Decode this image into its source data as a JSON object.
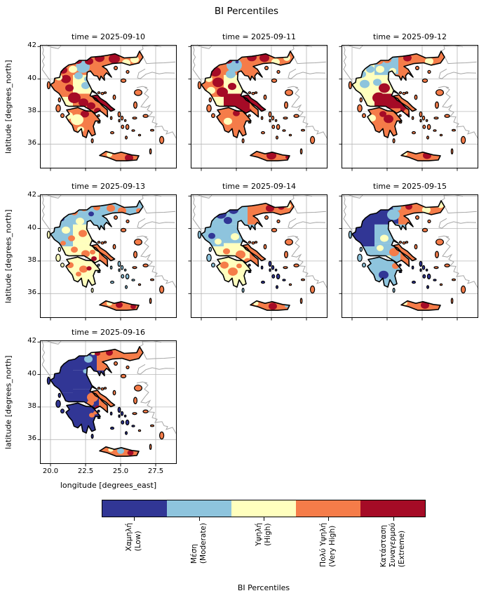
{
  "title": "BI Percentiles",
  "chart_data": {
    "type": "heatmap",
    "suptitle": "BI Percentiles",
    "xlabel": "longitude [degrees_east]",
    "ylabel": "latitude [degrees_north]",
    "x_ticks": [
      "20.0",
      "22.5",
      "25.0",
      "27.5"
    ],
    "x_tick_values": [
      20,
      22.5,
      25,
      27.5
    ],
    "y_ticks": [
      "42",
      "40",
      "38",
      "36"
    ],
    "y_tick_values": [
      42,
      40,
      38,
      36
    ],
    "xlim": [
      19.25,
      29.0
    ],
    "ylim": [
      34.5,
      42.1
    ],
    "grid": true,
    "colorbar": {
      "label": "BI Percentiles",
      "categories": [
        {
          "lines": [
            "Χαμηλή",
            "(Low)"
          ],
          "color": "#313695"
        },
        {
          "lines": [
            "Μέση",
            "(Moderate)"
          ],
          "color": "#8ec4dd"
        },
        {
          "lines": [
            "Υψηλή",
            "(High)"
          ],
          "color": "#ffffbe"
        },
        {
          "lines": [
            "Πολύ Υψηλή",
            "(Very High)"
          ],
          "color": "#f57c49"
        },
        {
          "lines": [
            "Κατάσταση",
            "Συναγερμού",
            "(Extreme)"
          ],
          "color": "#a50b26"
        }
      ]
    },
    "panels": [
      {
        "title": "time = 2025-09-10",
        "date": "2025-09-10",
        "zones": {
          "pelop": 4,
          "nw": 4,
          "wsterea": 3,
          "esterea": 4,
          "thessaly": 3,
          "attica": 4,
          "cmac": 4,
          "chalk": 4,
          "thrace": 4,
          "euboea": 5,
          "crete": 4
        },
        "islands": {
          "ionian": 4,
          "naegean": 4,
          "cyclades": 4,
          "dodecanese": 4
        },
        "patches": [
          [
            20.9,
            40.55,
            0.3,
            5
          ],
          [
            21.1,
            40.0,
            0.35,
            5
          ],
          [
            21.35,
            39.45,
            0.3,
            5
          ],
          [
            21.7,
            38.85,
            0.45,
            5
          ],
          [
            22.35,
            38.55,
            0.35,
            5
          ],
          [
            22.3,
            40.75,
            0.5,
            2
          ],
          [
            22.0,
            40.2,
            0.3,
            2
          ],
          [
            22.65,
            40.0,
            0.25,
            2
          ],
          [
            22.5,
            39.6,
            0.3,
            2
          ],
          [
            21.95,
            41.15,
            0.3,
            5
          ],
          [
            22.75,
            41.1,
            0.3,
            5
          ],
          [
            23.5,
            41.3,
            0.35,
            5
          ],
          [
            24.55,
            41.25,
            0.4,
            5
          ],
          [
            25.4,
            41.0,
            0.3,
            3
          ],
          [
            26.0,
            41.2,
            0.3,
            3
          ],
          [
            22.9,
            38.35,
            0.3,
            5
          ],
          [
            23.35,
            38.05,
            0.25,
            5
          ],
          [
            22.45,
            37.85,
            0.3,
            5
          ],
          [
            21.9,
            37.5,
            0.45,
            3
          ],
          [
            21.3,
            37.75,
            0.3,
            3
          ],
          [
            22.15,
            36.9,
            0.25,
            3
          ],
          [
            25.6,
            35.15,
            0.3,
            5
          ],
          [
            24.2,
            35.35,
            0.2,
            3
          ],
          [
            20.6,
            40.1,
            0.25,
            3
          ],
          [
            21.6,
            40.6,
            0.3,
            3
          ]
        ]
      },
      {
        "title": "time = 2025-09-11",
        "date": "2025-09-11",
        "zones": {
          "pelop": 4,
          "nw": 4,
          "wsterea": 3,
          "esterea": 5,
          "thessaly": 3,
          "attica": 4,
          "cmac": 4,
          "chalk": 4,
          "thrace": 4,
          "euboea": 5,
          "crete": 4
        },
        "islands": {
          "ionian": 4,
          "naegean": 4,
          "cyclades": 4,
          "dodecanese": 4
        },
        "patches": [
          [
            22.35,
            40.85,
            0.55,
            2
          ],
          [
            22.1,
            40.3,
            0.35,
            2
          ],
          [
            22.55,
            41.05,
            0.12,
            1
          ],
          [
            21.0,
            40.45,
            0.4,
            5
          ],
          [
            21.2,
            39.8,
            0.4,
            5
          ],
          [
            21.5,
            39.2,
            0.4,
            5
          ],
          [
            20.7,
            39.3,
            0.3,
            3
          ],
          [
            20.55,
            40.0,
            0.25,
            3
          ],
          [
            21.9,
            41.2,
            0.35,
            5
          ],
          [
            23.6,
            41.35,
            0.35,
            5
          ],
          [
            24.5,
            41.3,
            0.35,
            5
          ],
          [
            25.3,
            41.05,
            0.3,
            3
          ],
          [
            26.1,
            41.3,
            0.25,
            3
          ],
          [
            22.2,
            39.55,
            0.3,
            5
          ],
          [
            22.85,
            38.3,
            0.35,
            5
          ],
          [
            23.3,
            38.0,
            0.3,
            5
          ],
          [
            22.5,
            37.9,
            0.25,
            5
          ],
          [
            21.9,
            37.4,
            0.3,
            3
          ],
          [
            25.0,
            35.3,
            0.35,
            5
          ],
          [
            26.2,
            35.2,
            0.2,
            5
          ]
        ]
      },
      {
        "title": "time = 2025-09-12",
        "date": "2025-09-12",
        "zones": {
          "pelop": 4,
          "nw": 3,
          "wsterea": 3,
          "esterea": 5,
          "thessaly": 3,
          "attica": 5,
          "cmac": 2,
          "chalk": 4,
          "thrace": 4,
          "euboea": 4,
          "crete": 4
        },
        "islands": {
          "ionian": 4,
          "naegean": 4,
          "cyclades": 4,
          "dodecanese": 4
        },
        "patches": [
          [
            20.7,
            40.3,
            0.3,
            2
          ],
          [
            20.9,
            39.7,
            0.35,
            2
          ],
          [
            21.3,
            40.6,
            0.3,
            2
          ],
          [
            21.9,
            41.15,
            0.35,
            4
          ],
          [
            22.5,
            41.2,
            0.3,
            4
          ],
          [
            23.95,
            41.3,
            0.3,
            5
          ],
          [
            24.5,
            41.15,
            0.3,
            4
          ],
          [
            25.5,
            41.1,
            0.3,
            3
          ],
          [
            21.8,
            39.8,
            0.3,
            2
          ],
          [
            22.3,
            39.45,
            0.4,
            5
          ],
          [
            21.9,
            38.85,
            0.45,
            5
          ],
          [
            23.9,
            38.0,
            0.2,
            4
          ],
          [
            22.6,
            37.55,
            0.35,
            5
          ],
          [
            22.2,
            37.85,
            0.25,
            5
          ],
          [
            21.4,
            37.6,
            0.3,
            3
          ],
          [
            25.35,
            35.3,
            0.3,
            5
          ],
          [
            23.8,
            35.4,
            0.15,
            3
          ],
          [
            22.0,
            40.6,
            0.3,
            3
          ],
          [
            22.9,
            40.5,
            0.25,
            3
          ]
        ]
      },
      {
        "title": "time = 2025-09-13",
        "date": "2025-09-13",
        "zones": {
          "pelop": 3,
          "nw": 2,
          "wsterea": 3,
          "esterea": 3,
          "thessaly": 3,
          "attica": 4,
          "cmac": 2,
          "chalk": 2,
          "thrace": 2,
          "euboea": 4,
          "crete": 4
        },
        "islands": {
          "ionian": 3,
          "naegean": 4,
          "cyclades": 2,
          "dodecanese": 4
        },
        "patches": [
          [
            20.8,
            40.6,
            0.2,
            1
          ],
          [
            22.9,
            40.9,
            0.2,
            1
          ],
          [
            21.7,
            41.0,
            0.25,
            4
          ],
          [
            22.4,
            41.25,
            0.25,
            4
          ],
          [
            23.3,
            41.3,
            0.25,
            4
          ],
          [
            24.3,
            41.25,
            0.3,
            4
          ],
          [
            25.1,
            41.1,
            0.3,
            4
          ],
          [
            25.9,
            41.35,
            0.25,
            2
          ],
          [
            26.3,
            41.1,
            0.2,
            4
          ],
          [
            21.1,
            39.9,
            0.3,
            3
          ],
          [
            21.5,
            39.4,
            0.25,
            4
          ],
          [
            22.3,
            39.7,
            0.3,
            4
          ],
          [
            20.9,
            39.1,
            0.2,
            4
          ],
          [
            21.7,
            38.7,
            0.25,
            4
          ],
          [
            22.5,
            38.45,
            0.3,
            4
          ],
          [
            23.1,
            38.15,
            0.2,
            5
          ],
          [
            23.0,
            38.55,
            0.2,
            4
          ],
          [
            22.35,
            37.5,
            0.3,
            4
          ],
          [
            22.75,
            37.55,
            0.18,
            5
          ],
          [
            21.4,
            37.75,
            0.25,
            4
          ],
          [
            22.0,
            37.2,
            0.2,
            4
          ],
          [
            24.9,
            35.3,
            0.25,
            5
          ],
          [
            25.9,
            35.2,
            0.2,
            5
          ],
          [
            24.2,
            35.4,
            0.2,
            3
          ],
          [
            22.1,
            40.45,
            0.3,
            3
          ]
        ]
      },
      {
        "title": "time = 2025-09-14",
        "date": "2025-09-14",
        "zones": {
          "pelop": 3,
          "nw": 2,
          "wsterea": 3,
          "esterea": 3,
          "thessaly": 2,
          "attica": 4,
          "cmac": 2,
          "chalk": 2,
          "thrace": 4,
          "euboea": 4,
          "crete": 4
        },
        "islands": {
          "ionian": 2,
          "naegean": 4,
          "cyclades": 1,
          "dodecanese": 4
        },
        "patches": [
          [
            21.4,
            40.9,
            0.4,
            1
          ],
          [
            22.3,
            41.15,
            0.35,
            1
          ],
          [
            21.9,
            40.5,
            0.3,
            1
          ],
          [
            20.75,
            39.55,
            0.25,
            1
          ],
          [
            22.7,
            40.75,
            0.25,
            2
          ],
          [
            24.9,
            41.25,
            0.3,
            5
          ],
          [
            25.7,
            41.35,
            0.25,
            5
          ],
          [
            24.2,
            41.1,
            0.3,
            4
          ],
          [
            23.6,
            41.3,
            0.25,
            4
          ],
          [
            26.2,
            41.4,
            0.2,
            3
          ],
          [
            22.4,
            39.5,
            0.3,
            3
          ],
          [
            21.2,
            39.2,
            0.25,
            3
          ],
          [
            22.8,
            38.4,
            0.35,
            4
          ],
          [
            23.3,
            38.0,
            0.25,
            4
          ],
          [
            21.8,
            38.6,
            0.25,
            4
          ],
          [
            22.25,
            37.35,
            0.35,
            4
          ],
          [
            21.65,
            37.75,
            0.3,
            4
          ],
          [
            22.7,
            37.7,
            0.2,
            4
          ],
          [
            25.1,
            35.22,
            0.3,
            5
          ],
          [
            23.9,
            35.4,
            0.18,
            3
          ],
          [
            26.1,
            35.25,
            0.15,
            2
          ]
        ]
      },
      {
        "title": "time = 2025-09-15",
        "date": "2025-09-15",
        "zones": {
          "pelop": 2,
          "nw": 1,
          "wsterea": 2,
          "esterea": 2,
          "thessaly": 2,
          "attica": 4,
          "cmac": 1,
          "chalk": 2,
          "thrace": 4,
          "euboea": 4,
          "crete": 4
        },
        "islands": {
          "ionian": 2,
          "naegean": 4,
          "cyclades": 1,
          "dodecanese": 4
        },
        "patches": [
          [
            22.95,
            40.85,
            0.45,
            2
          ],
          [
            23.2,
            41.3,
            0.3,
            2
          ],
          [
            24.05,
            41.35,
            0.25,
            5
          ],
          [
            24.6,
            41.3,
            0.25,
            4
          ],
          [
            25.3,
            41.15,
            0.3,
            3
          ],
          [
            26.3,
            41.45,
            0.25,
            3
          ],
          [
            26.4,
            41.1,
            0.2,
            4
          ],
          [
            22.3,
            39.4,
            0.3,
            3
          ],
          [
            22.0,
            38.8,
            0.25,
            3
          ],
          [
            23.0,
            38.55,
            0.35,
            4
          ],
          [
            23.35,
            38.75,
            0.25,
            4
          ],
          [
            22.25,
            37.15,
            0.35,
            1
          ],
          [
            23.1,
            37.7,
            0.25,
            4
          ],
          [
            22.6,
            38.2,
            0.2,
            3
          ],
          [
            25.2,
            35.28,
            0.3,
            5
          ],
          [
            23.8,
            35.4,
            0.15,
            3
          ]
        ]
      },
      {
        "title": "time = 2025-09-16",
        "date": "2025-09-16",
        "zones": {
          "pelop": 1,
          "nw": 1,
          "wsterea": 1,
          "esterea": 1,
          "thessaly": 1,
          "attica": 4,
          "cmac": 1,
          "chalk": 1,
          "thrace": 4,
          "euboea": 4,
          "crete": 4
        },
        "islands": {
          "ionian": 1,
          "naegean": 4,
          "cyclades": 1,
          "dodecanese": 4
        },
        "patches": [
          [
            22.7,
            40.95,
            0.3,
            2
          ],
          [
            23.05,
            41.35,
            0.2,
            3
          ],
          [
            23.35,
            41.3,
            0.2,
            5
          ],
          [
            24.2,
            41.35,
            0.25,
            5
          ],
          [
            25.0,
            41.2,
            0.3,
            4
          ],
          [
            26.4,
            41.5,
            0.25,
            4
          ],
          [
            22.5,
            40.2,
            0.18,
            2
          ],
          [
            23.0,
            38.6,
            0.4,
            4
          ],
          [
            22.85,
            38.25,
            0.25,
            4
          ],
          [
            23.35,
            37.95,
            0.2,
            5
          ],
          [
            22.95,
            37.5,
            0.2,
            4
          ],
          [
            23.2,
            37.65,
            0.15,
            4
          ],
          [
            25.0,
            35.3,
            0.25,
            2
          ],
          [
            25.7,
            35.18,
            0.22,
            5
          ],
          [
            24.3,
            35.38,
            0.18,
            3
          ],
          [
            23.75,
            38.95,
            0.2,
            4
          ]
        ]
      }
    ]
  }
}
